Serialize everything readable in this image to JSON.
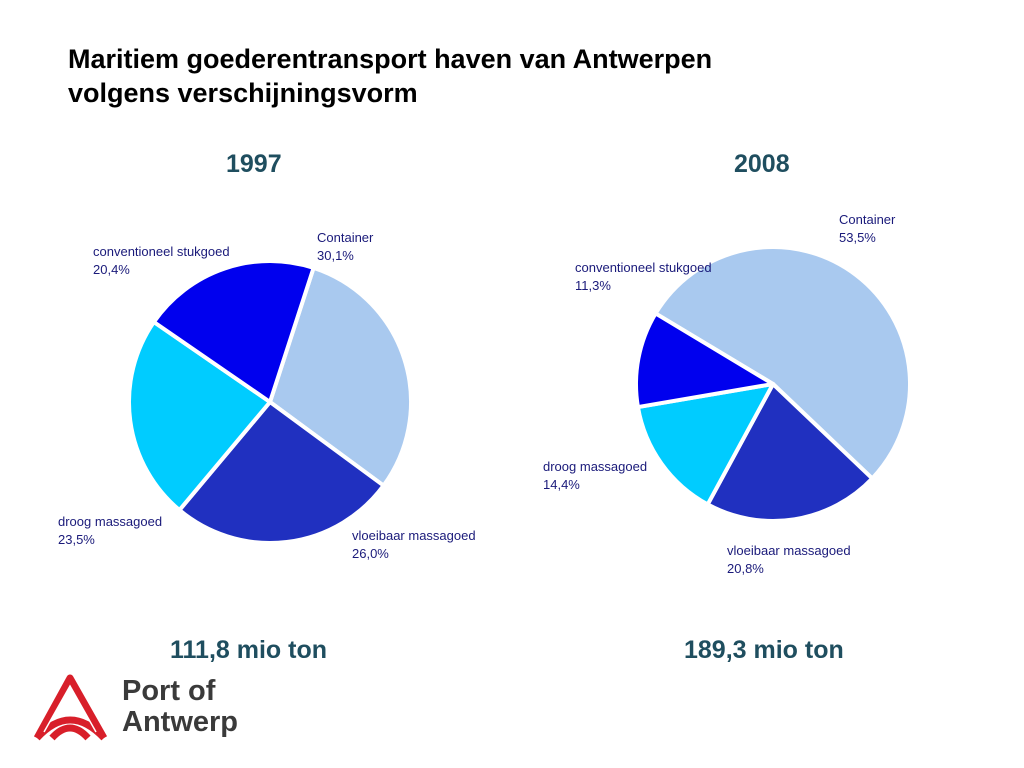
{
  "page": {
    "title_line1": "Maritiem goederentransport haven van Antwerpen",
    "title_line2": "volgens verschijningsvorm"
  },
  "logo": {
    "line1": "Port of",
    "line2": "Antwerp",
    "color": "#d81f2a"
  },
  "chart_data": [
    {
      "type": "pie",
      "title": "1997",
      "total_label": "111,8 mio ton",
      "slices": [
        {
          "label": "Container",
          "value": 30.1,
          "value_label": "30,1%",
          "color": "#a9c9ef"
        },
        {
          "label": "vloeibaar massagoed",
          "value": 26.0,
          "value_label": "26,0%",
          "color": "#2030c0"
        },
        {
          "label": "droog massagoed",
          "value": 23.5,
          "value_label": "23,5%",
          "color": "#00ccff"
        },
        {
          "label": "conventioneel stukgoed",
          "value": 20.4,
          "value_label": "20,4%",
          "color": "#0000ee"
        }
      ]
    },
    {
      "type": "pie",
      "title": "2008",
      "total_label": "189,3 mio ton",
      "slices": [
        {
          "label": "Container",
          "value": 53.5,
          "value_label": "53,5%",
          "color": "#a9c9ef"
        },
        {
          "label": "vloeibaar massagoed",
          "value": 20.8,
          "value_label": "20,8%",
          "color": "#2030c0"
        },
        {
          "label": "droog massagoed",
          "value": 14.4,
          "value_label": "14,4%",
          "color": "#00ccff"
        },
        {
          "label": "conventioneel stukgoed",
          "value": 11.3,
          "value_label": "11,3%",
          "color": "#0000ee"
        }
      ]
    }
  ]
}
